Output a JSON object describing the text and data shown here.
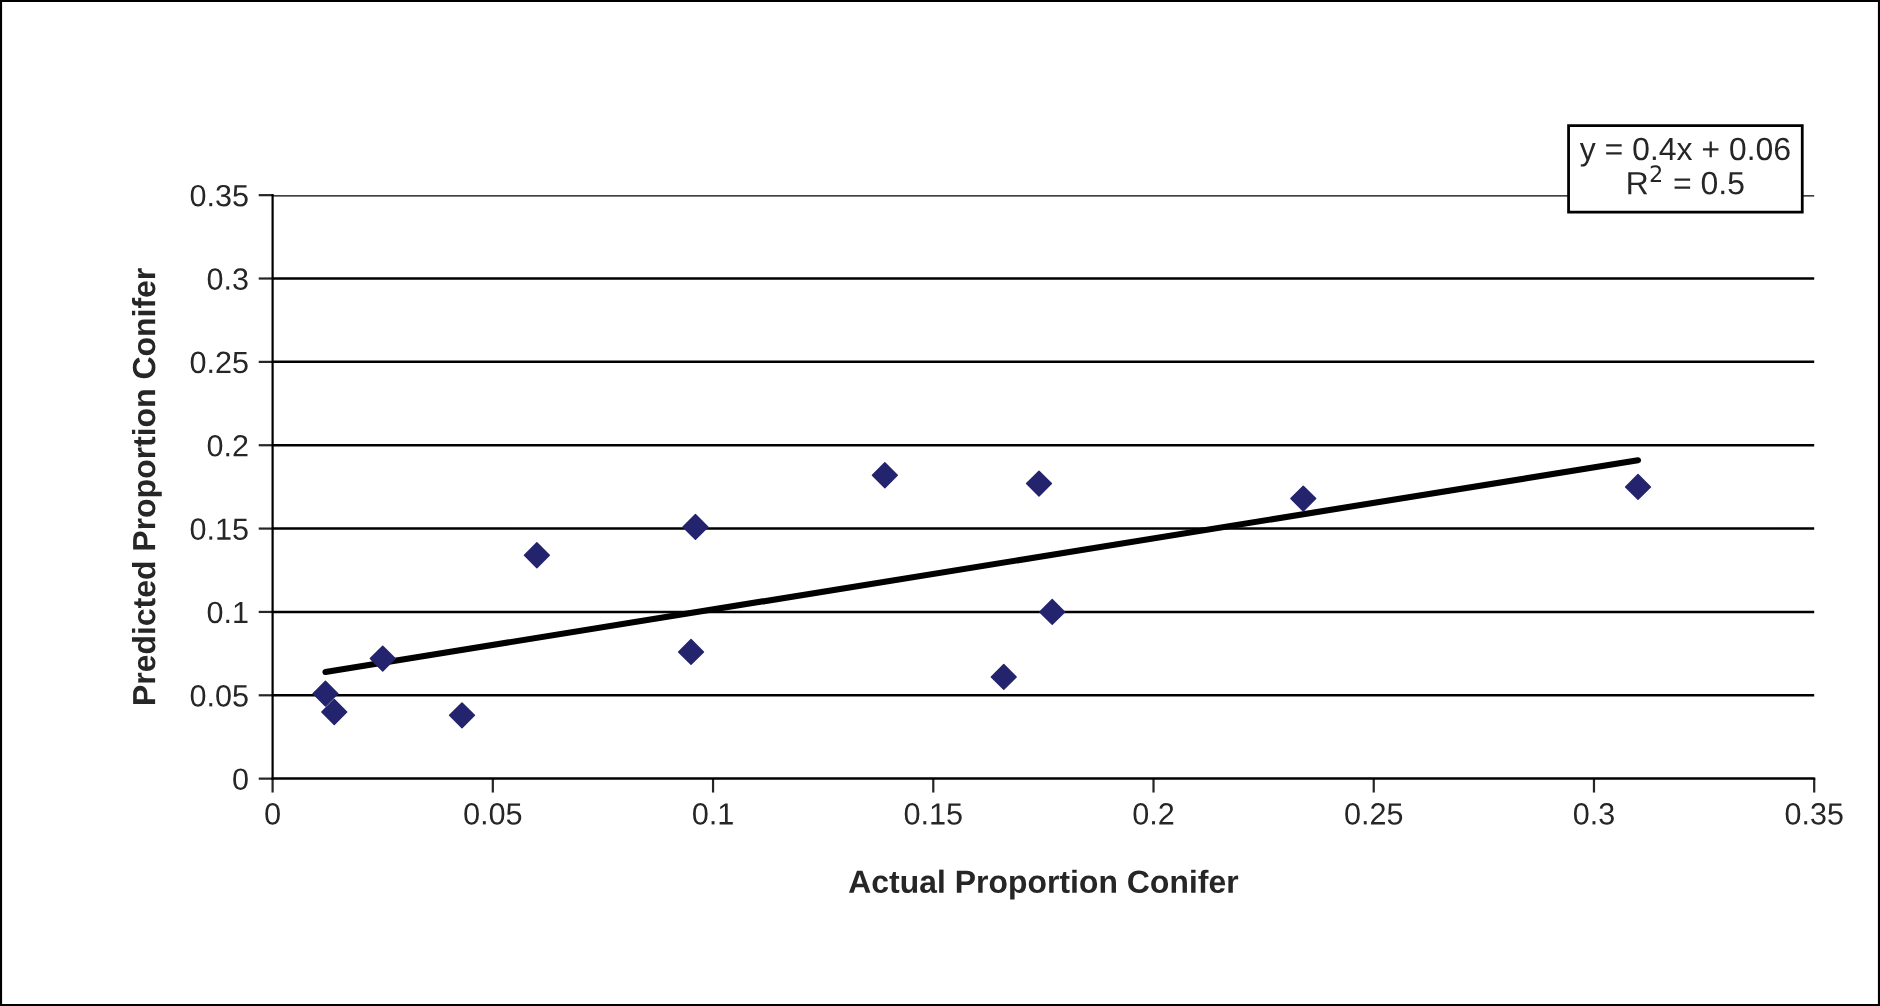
{
  "chart_data": {
    "type": "scatter",
    "xlabel": "Actual Proportion Conifer",
    "ylabel": "Predicted Proportion Conifer",
    "series": [
      {
        "color": "#24246e",
        "marker": "diamond",
        "x": [
          0.012,
          0.014,
          0.025,
          0.043,
          0.06,
          0.096,
          0.095,
          0.139,
          0.174,
          0.177,
          0.166,
          0.234,
          0.31
        ],
        "values": [
          0.051,
          0.04,
          0.072,
          0.038,
          0.134,
          0.151,
          0.076,
          0.182,
          0.177,
          0.1,
          0.061,
          0.168,
          0.175
        ]
      },
      {
        "type": "line",
        "color": "#000000",
        "marker": "none",
        "x": [
          0.012,
          0.31
        ],
        "values": [
          0.064,
          0.191
        ]
      }
    ],
    "annotations": [
      "y = 0.4x + 0.06\nR$^{2}$ = 0.5"
    ],
    "xlim": [
      0,
      0.35
    ],
    "xticks": [
      0,
      0.05,
      0.1,
      0.15,
      0.2,
      0.25,
      0.3,
      0.35
    ],
    "ylim": [
      0,
      0.35
    ],
    "yticks": [
      0,
      0.05,
      0.1,
      0.15,
      0.2,
      0.25,
      0.3,
      0.35
    ],
    "grid": "y",
    "legend": false
  }
}
